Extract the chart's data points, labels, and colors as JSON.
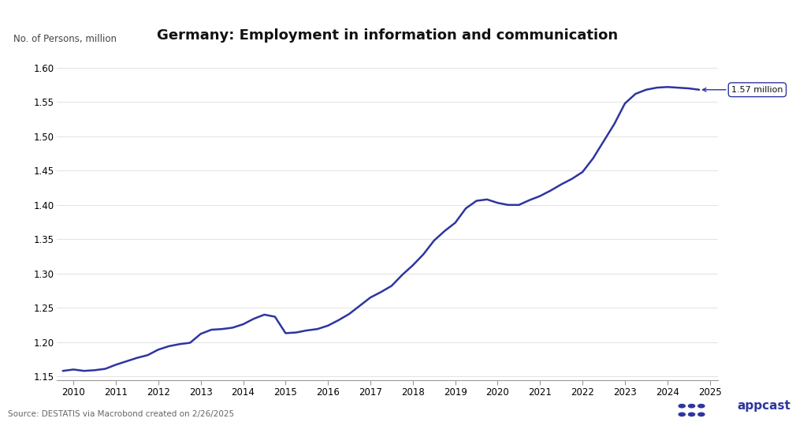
{
  "title": "Germany: Employment in information and communication",
  "ylabel": "No. of Persons, million",
  "source": "Source: DESTATIS via Macrobond created on 2/26/2025",
  "annotation_text": "1.57 million",
  "line_color": "#2e35a0",
  "background_color": "#ffffff",
  "xlim": [
    2009.6,
    2025.2
  ],
  "ylim": [
    1.145,
    1.625
  ],
  "yticks": [
    1.15,
    1.2,
    1.25,
    1.3,
    1.35,
    1.4,
    1.45,
    1.5,
    1.55,
    1.6
  ],
  "xticks": [
    2010,
    2011,
    2012,
    2013,
    2014,
    2015,
    2016,
    2017,
    2018,
    2019,
    2020,
    2021,
    2022,
    2023,
    2024,
    2025
  ],
  "data": {
    "x": [
      2009.75,
      2010.0,
      2010.25,
      2010.5,
      2010.75,
      2011.0,
      2011.25,
      2011.5,
      2011.75,
      2012.0,
      2012.25,
      2012.5,
      2012.75,
      2013.0,
      2013.25,
      2013.5,
      2013.75,
      2014.0,
      2014.25,
      2014.5,
      2014.75,
      2015.0,
      2015.25,
      2015.5,
      2015.75,
      2016.0,
      2016.25,
      2016.5,
      2016.75,
      2017.0,
      2017.25,
      2017.5,
      2017.75,
      2018.0,
      2018.25,
      2018.5,
      2018.75,
      2019.0,
      2019.25,
      2019.5,
      2019.75,
      2020.0,
      2020.25,
      2020.5,
      2020.75,
      2021.0,
      2021.25,
      2021.5,
      2021.75,
      2022.0,
      2022.25,
      2022.5,
      2022.75,
      2023.0,
      2023.25,
      2023.5,
      2023.75,
      2024.0,
      2024.25,
      2024.5,
      2024.75
    ],
    "y": [
      1.158,
      1.16,
      1.158,
      1.159,
      1.161,
      1.167,
      1.172,
      1.177,
      1.181,
      1.189,
      1.194,
      1.197,
      1.199,
      1.212,
      1.218,
      1.219,
      1.221,
      1.226,
      1.234,
      1.24,
      1.237,
      1.213,
      1.214,
      1.217,
      1.219,
      1.224,
      1.232,
      1.241,
      1.253,
      1.265,
      1.273,
      1.282,
      1.298,
      1.312,
      1.328,
      1.348,
      1.362,
      1.374,
      1.395,
      1.406,
      1.408,
      1.403,
      1.4,
      1.4,
      1.407,
      1.413,
      1.421,
      1.43,
      1.438,
      1.448,
      1.468,
      1.493,
      1.518,
      1.548,
      1.562,
      1.568,
      1.571,
      1.572,
      1.571,
      1.57,
      1.568
    ]
  }
}
